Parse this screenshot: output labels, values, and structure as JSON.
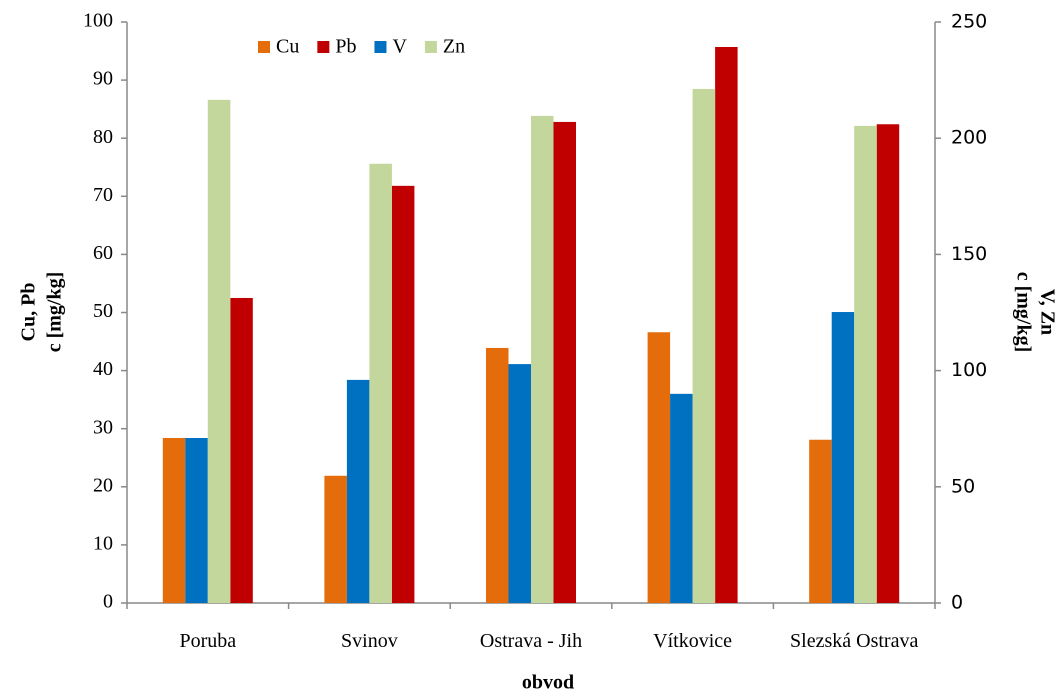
{
  "chart_data": {
    "type": "bar",
    "categories": [
      "Poruba",
      "Svinov",
      "Ostrava - Jih",
      "Vítkovice",
      "Slezská Ostrava"
    ],
    "x_label": "obvod",
    "y_label": [
      "Cu, Pb",
      "c [mg/kg]"
    ],
    "y2_label": [
      "c [mg/kg]",
      "V, Zn"
    ],
    "series": [
      {
        "name": "Cu",
        "color": "#e46c0a",
        "values": [
          28.4,
          21.9,
          43.9,
          46.6,
          28.1
        ]
      },
      {
        "name": "Pb",
        "color": "#c00000",
        "values": [
          52.5,
          71.8,
          82.8,
          95.7,
          82.4
        ]
      },
      {
        "name": "V",
        "color": "#0070c0",
        "axis": "y2",
        "values": [
          71,
          96,
          102.8,
          90,
          125.2
        ]
      },
      {
        "name": "Zn",
        "color": "#c3d69b",
        "axis": "y2",
        "values": [
          216.5,
          189,
          209.6,
          221.2,
          205.3
        ]
      }
    ],
    "ylim": [
      0,
      100
    ],
    "yticks": [
      0,
      10,
      20,
      30,
      40,
      50,
      60,
      70,
      80,
      90,
      100
    ],
    "y2lim": [
      0,
      250
    ],
    "y2ticks": [
      0,
      50,
      100,
      150,
      200,
      250
    ],
    "grid": false,
    "legend": "top"
  }
}
